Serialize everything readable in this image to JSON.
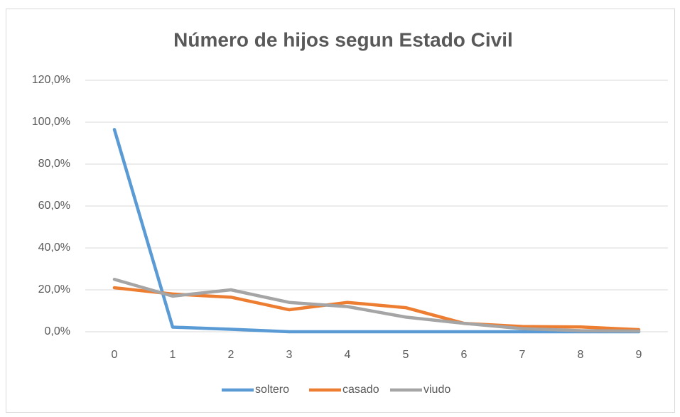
{
  "chart_data": {
    "type": "line",
    "title": "Número de hijos segun Estado Civil",
    "categories": [
      "0",
      "1",
      "2",
      "3",
      "4",
      "5",
      "6",
      "7",
      "8",
      "9"
    ],
    "series": [
      {
        "name": "soltero",
        "color": "#5b9bd5",
        "values": [
          96.5,
          2.2,
          1.2,
          0,
          0,
          0,
          0,
          0,
          0,
          0
        ]
      },
      {
        "name": "casado",
        "color": "#ed7d31",
        "values": [
          21,
          18,
          16.5,
          10.5,
          14,
          11.5,
          4,
          2.5,
          2.3,
          1
        ]
      },
      {
        "name": "viudo",
        "color": "#a5a5a5",
        "values": [
          25,
          17,
          20,
          14,
          12,
          7,
          4,
          1.5,
          0.5,
          0.3
        ]
      }
    ],
    "ylim": [
      0,
      120
    ],
    "yticks": [
      {
        "value": 0,
        "label": "0,0%"
      },
      {
        "value": 20,
        "label": "20,0%"
      },
      {
        "value": 40,
        "label": "40,0%"
      },
      {
        "value": 60,
        "label": "60,0%"
      },
      {
        "value": 80,
        "label": "80,0%"
      },
      {
        "value": 100,
        "label": "100,0%"
      },
      {
        "value": 120,
        "label": "120,0%"
      }
    ],
    "grid": true,
    "legend": "bottom"
  }
}
